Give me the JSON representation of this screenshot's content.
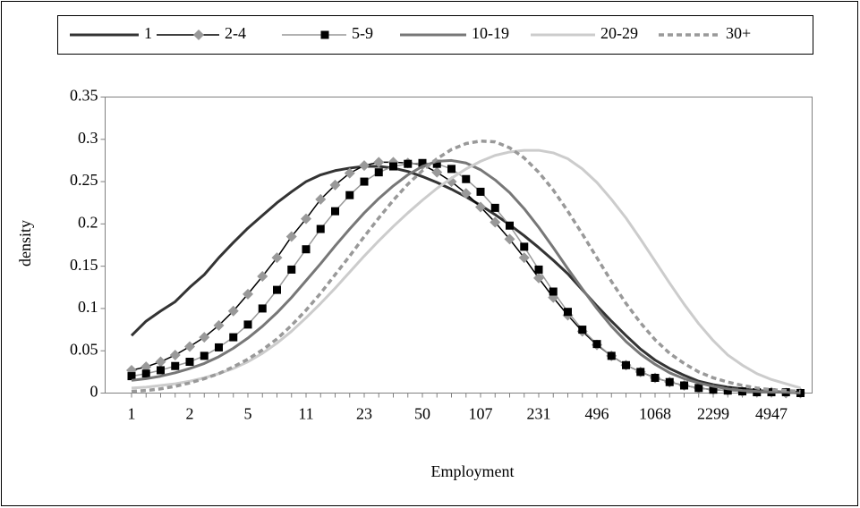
{
  "chart_data": {
    "type": "line",
    "x_label": "Employment",
    "y_label": "density",
    "categories": [
      "1",
      null,
      null,
      null,
      "2",
      null,
      null,
      null,
      "5",
      null,
      null,
      null,
      "11",
      null,
      null,
      null,
      "23",
      null,
      null,
      null,
      "50",
      null,
      null,
      null,
      "107",
      null,
      null,
      null,
      "231",
      null,
      null,
      null,
      "496",
      null,
      null,
      null,
      "1068",
      null,
      null,
      null,
      "2299",
      null,
      null,
      null,
      "4947",
      null,
      null
    ],
    "ylim": [
      0,
      0.35
    ],
    "yticks": [
      0,
      0.05,
      0.1,
      0.15,
      0.2,
      0.25,
      0.3,
      0.35
    ],
    "legend": "top",
    "series": [
      {
        "name": "1",
        "color": "#333333",
        "width": 3,
        "marker": "none",
        "values": [
          0.068,
          0.085,
          0.097,
          0.108,
          0.125,
          0.14,
          0.16,
          0.178,
          0.195,
          0.21,
          0.225,
          0.238,
          0.25,
          0.258,
          0.263,
          0.266,
          0.268,
          0.268,
          0.266,
          0.262,
          0.256,
          0.249,
          0.241,
          0.232,
          0.222,
          0.211,
          0.199,
          0.186,
          0.172,
          0.157,
          0.141,
          0.122,
          0.103,
          0.085,
          0.068,
          0.052,
          0.039,
          0.029,
          0.021,
          0.014,
          0.01,
          0.007,
          0.005,
          0.003,
          0.002,
          0.001,
          0.001
        ]
      },
      {
        "name": "2-4",
        "color": "#000000",
        "width": 1.5,
        "marker": "diamond",
        "marker_color": "#999999",
        "values": [
          0.027,
          0.031,
          0.037,
          0.045,
          0.055,
          0.066,
          0.08,
          0.097,
          0.117,
          0.138,
          0.16,
          0.185,
          0.206,
          0.229,
          0.246,
          0.26,
          0.269,
          0.273,
          0.273,
          0.272,
          0.27,
          0.261,
          0.25,
          0.236,
          0.22,
          0.202,
          0.182,
          0.16,
          0.136,
          0.113,
          0.092,
          0.073,
          0.057,
          0.044,
          0.033,
          0.025,
          0.018,
          0.013,
          0.009,
          0.006,
          0.004,
          0.003,
          0.002,
          0.001,
          0.001,
          0,
          0
        ]
      },
      {
        "name": "5-9",
        "color": "#999999",
        "width": 1.5,
        "marker": "square",
        "marker_color": "#000000",
        "values": [
          0.02,
          0.023,
          0.027,
          0.032,
          0.037,
          0.044,
          0.054,
          0.066,
          0.081,
          0.1,
          0.122,
          0.146,
          0.17,
          0.194,
          0.215,
          0.234,
          0.25,
          0.261,
          0.268,
          0.271,
          0.272,
          0.271,
          0.265,
          0.253,
          0.238,
          0.219,
          0.198,
          0.173,
          0.146,
          0.12,
          0.096,
          0.075,
          0.058,
          0.044,
          0.033,
          0.025,
          0.018,
          0.013,
          0.009,
          0.006,
          0.004,
          0.003,
          0.002,
          0.001,
          0.001,
          0.001,
          0
        ]
      },
      {
        "name": "10-19",
        "color": "#777777",
        "width": 3,
        "marker": "none",
        "values": [
          0.015,
          0.017,
          0.02,
          0.024,
          0.029,
          0.035,
          0.043,
          0.053,
          0.065,
          0.079,
          0.095,
          0.113,
          0.133,
          0.153,
          0.174,
          0.194,
          0.213,
          0.23,
          0.245,
          0.258,
          0.268,
          0.274,
          0.275,
          0.272,
          0.264,
          0.252,
          0.237,
          0.218,
          0.196,
          0.172,
          0.147,
          0.123,
          0.1,
          0.079,
          0.061,
          0.046,
          0.034,
          0.024,
          0.017,
          0.012,
          0.008,
          0.005,
          0.003,
          0.002,
          0.001,
          0.001,
          0
        ]
      },
      {
        "name": "20-29",
        "color": "#cccccc",
        "width": 3,
        "marker": "none",
        "values": [
          0.006,
          0.007,
          0.009,
          0.011,
          0.014,
          0.018,
          0.023,
          0.029,
          0.037,
          0.047,
          0.059,
          0.073,
          0.089,
          0.106,
          0.124,
          0.143,
          0.162,
          0.18,
          0.197,
          0.213,
          0.228,
          0.242,
          0.254,
          0.265,
          0.274,
          0.281,
          0.285,
          0.287,
          0.287,
          0.284,
          0.277,
          0.265,
          0.249,
          0.229,
          0.207,
          0.182,
          0.156,
          0.13,
          0.105,
          0.082,
          0.062,
          0.045,
          0.033,
          0.023,
          0.016,
          0.011,
          0.006
        ]
      },
      {
        "name": "30+",
        "color": "#999999",
        "width": 3.5,
        "marker": "none",
        "dashed": true,
        "values": [
          0.002,
          0.003,
          0.005,
          0.008,
          0.012,
          0.017,
          0.023,
          0.031,
          0.04,
          0.051,
          0.064,
          0.08,
          0.098,
          0.118,
          0.14,
          0.162,
          0.185,
          0.207,
          0.228,
          0.247,
          0.263,
          0.277,
          0.288,
          0.295,
          0.298,
          0.297,
          0.29,
          0.278,
          0.261,
          0.24,
          0.215,
          0.188,
          0.16,
          0.132,
          0.106,
          0.083,
          0.063,
          0.047,
          0.035,
          0.025,
          0.018,
          0.013,
          0.009,
          0.006,
          0.004,
          0.003,
          0.002
        ]
      }
    ]
  }
}
